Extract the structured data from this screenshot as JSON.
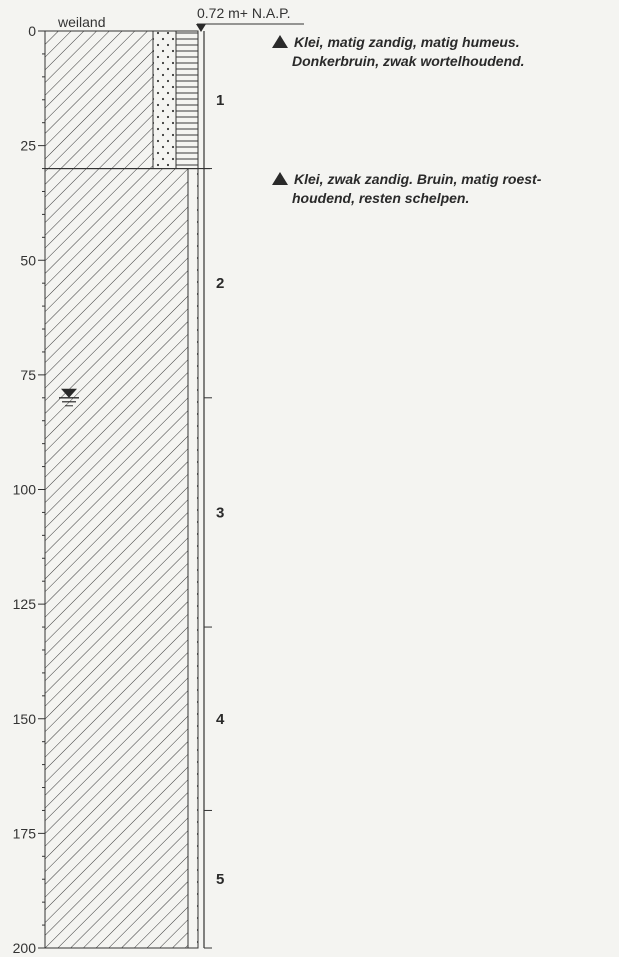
{
  "header": {
    "land_use": "weiland",
    "elevation": "0.72 m+ N.A.P."
  },
  "depth_axis": {
    "min": 0,
    "max": 200,
    "major_ticks": [
      "0",
      "25",
      "50",
      "75",
      "100",
      "125",
      "150",
      "175",
      "200"
    ],
    "minor_step": 5
  },
  "layers": [
    {
      "from": 0,
      "to": 30,
      "lithology": "clay-sandy-humic",
      "description": [
        "Klei, matig zandig, matig humeus.",
        "Donkerbruin, zwak wortelhoudend."
      ]
    },
    {
      "from": 30,
      "to": 200,
      "lithology": "clay-slightly-sandy",
      "description": [
        "Klei, zwak zandig. Bruin, matig roest-",
        "houdend, resten schelpen."
      ]
    }
  ],
  "samples": [
    {
      "label": "1",
      "from": 0,
      "to": 30
    },
    {
      "label": "2",
      "from": 30,
      "to": 80
    },
    {
      "label": "3",
      "from": 80,
      "to": 130
    },
    {
      "label": "4",
      "from": 130,
      "to": 170
    },
    {
      "label": "5",
      "from": 170,
      "to": 200
    }
  ],
  "groundwater_level": 80,
  "colors": {
    "ink": "#2a2a2a",
    "paper": "#f4f4f1"
  }
}
